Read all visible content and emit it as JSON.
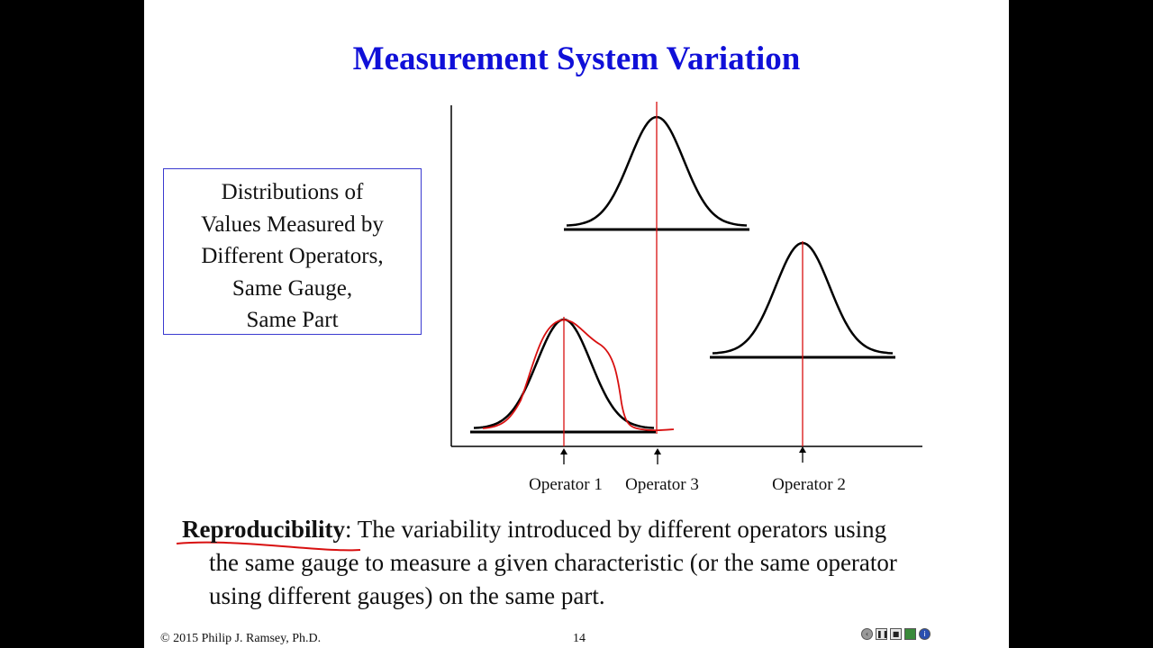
{
  "slide": {
    "title": "Measurement System Variation",
    "caption_lines": [
      "Distributions of",
      "Values Measured by",
      "Different Operators,",
      "Same Gauge,",
      "Same Part"
    ],
    "operators": [
      "Operator 1",
      "Operator 3",
      "Operator 2"
    ],
    "definition": {
      "term": "Reproducibility",
      "line1_rest": ":  The variability introduced by different operators using",
      "line2": "the same gauge to measure a given characteristic (or the same operator",
      "line3": "using different gauges) on the same part."
    },
    "footer": {
      "copyright": "© 2015 Philip J. Ramsey, Ph.D.",
      "page": "14"
    },
    "controls": [
      "back-icon",
      "pause-icon",
      "stop-icon",
      "bar-icon",
      "info-icon"
    ],
    "colors": {
      "title": "#1010d8",
      "curve": "#000000",
      "reference_line": "#d81010",
      "box_border": "#3a3ad0"
    }
  }
}
